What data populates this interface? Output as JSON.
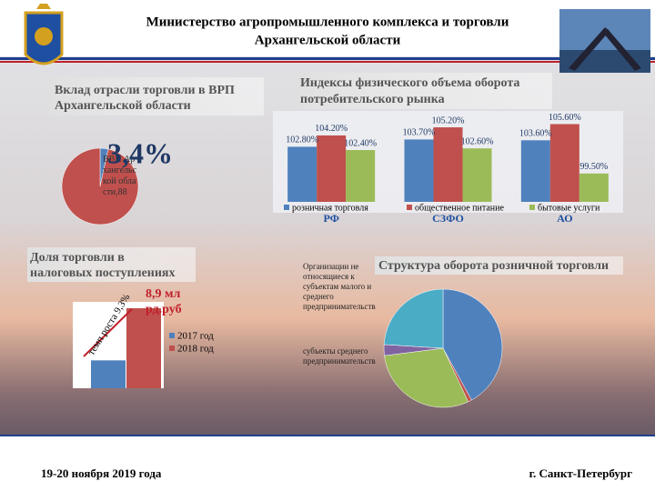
{
  "header": {
    "title": [
      "Министерство агропромышленного комплекса и торговли",
      "Архангельской области"
    ]
  },
  "footer": {
    "date": "19-20 ноября 2019 года",
    "place": "г. Санкт-Петербург"
  },
  "chart_data": [
    {
      "type": "pie",
      "title": [
        "Вклад отрасли торговли в ВРП",
        "Архангельской области"
      ],
      "values": [
        3.4,
        96.6
      ],
      "colors": [
        "#4f81bd",
        "#c0504d"
      ],
      "value_labels": [
        "3,4%",
        null
      ],
      "annotation": "ВВП Архангельской области,88"
    },
    {
      "type": "bar",
      "title": [
        "Индексы физического объема оборота",
        "потребительского рынка"
      ],
      "categories": [
        "РФ",
        "СЗФО",
        "АО"
      ],
      "series": [
        {
          "name": "розничная торговля",
          "color": "#4f81bd",
          "values": [
            102.8,
            103.7,
            103.6
          ],
          "value_labels": [
            "102.80%",
            "103.70%",
            "103.60%"
          ]
        },
        {
          "name": "общественное питание",
          "color": "#c0504d",
          "values": [
            104.2,
            105.2,
            105.6
          ],
          "value_labels": [
            "104.20%",
            "105.20%",
            "105.60%"
          ]
        },
        {
          "name": "бытовые услуги",
          "color": "#9bbb59",
          "values": [
            102.4,
            102.6,
            99.5
          ],
          "value_labels": [
            "102.40%",
            "102.60%",
            "99.50%"
          ]
        }
      ],
      "ylim": [
        96,
        107
      ]
    },
    {
      "type": "bar",
      "title": [
        "Доля торговли в",
        "налоговых поступлениях"
      ],
      "series": [
        {
          "name": "2017 год",
          "color": "#4f81bd",
          "values": [
            3.1
          ]
        },
        {
          "name": "2018 год",
          "color": "#c0504d",
          "values": [
            8.9
          ],
          "value_labels": [
            "8,9 млрд.руб"
          ]
        }
      ],
      "ylim": [
        0,
        9.4
      ],
      "annotation": "темп роста 9,3%"
    },
    {
      "type": "pie",
      "title": [
        "Структура оборота розничной торговли"
      ],
      "categories": [
        "Организации не относящиеся к субъектам малого и среднего предпринимательства",
        null,
        "субъекты среднего предпринимательства",
        null,
        null
      ],
      "values": [
        42,
        1,
        30,
        3,
        24
      ],
      "colors": [
        "#4f81bd",
        "#c0504d",
        "#9bbb59",
        "#8064a2",
        "#4bacc6"
      ]
    }
  ]
}
